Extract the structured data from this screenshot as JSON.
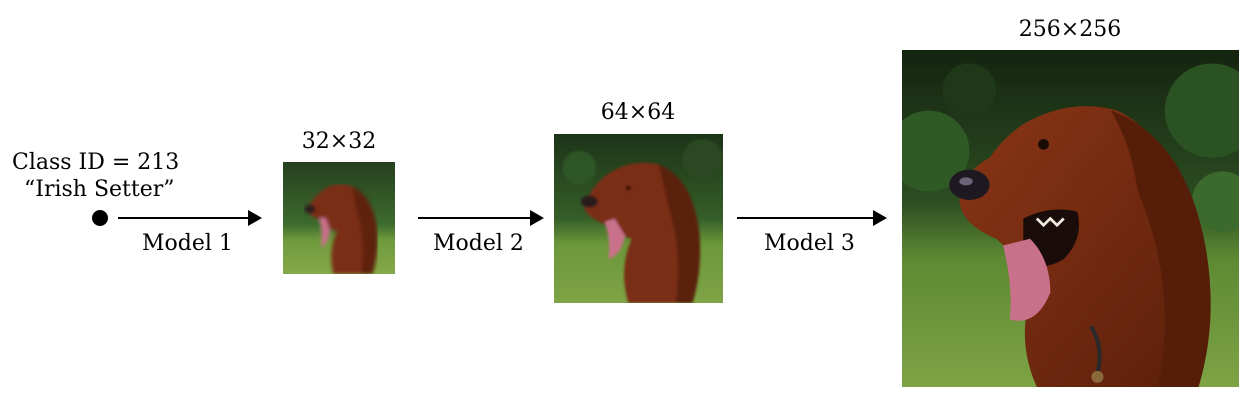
{
  "input": {
    "class_id_label": "Class ID = 213",
    "class_name": "“Irish Setter”"
  },
  "stages": [
    {
      "model_label": "Model 1",
      "resolution_label": "32×32"
    },
    {
      "model_label": "Model 2",
      "resolution_label": "64×64"
    },
    {
      "model_label": "Model 3",
      "resolution_label": "256×256"
    }
  ],
  "colors": {
    "grass": "#6f9a3c",
    "foliage": "#1f3a1c",
    "fur": "#7a2e12",
    "tongue": "#c9718a"
  },
  "image_subject": "irish-setter-dog"
}
